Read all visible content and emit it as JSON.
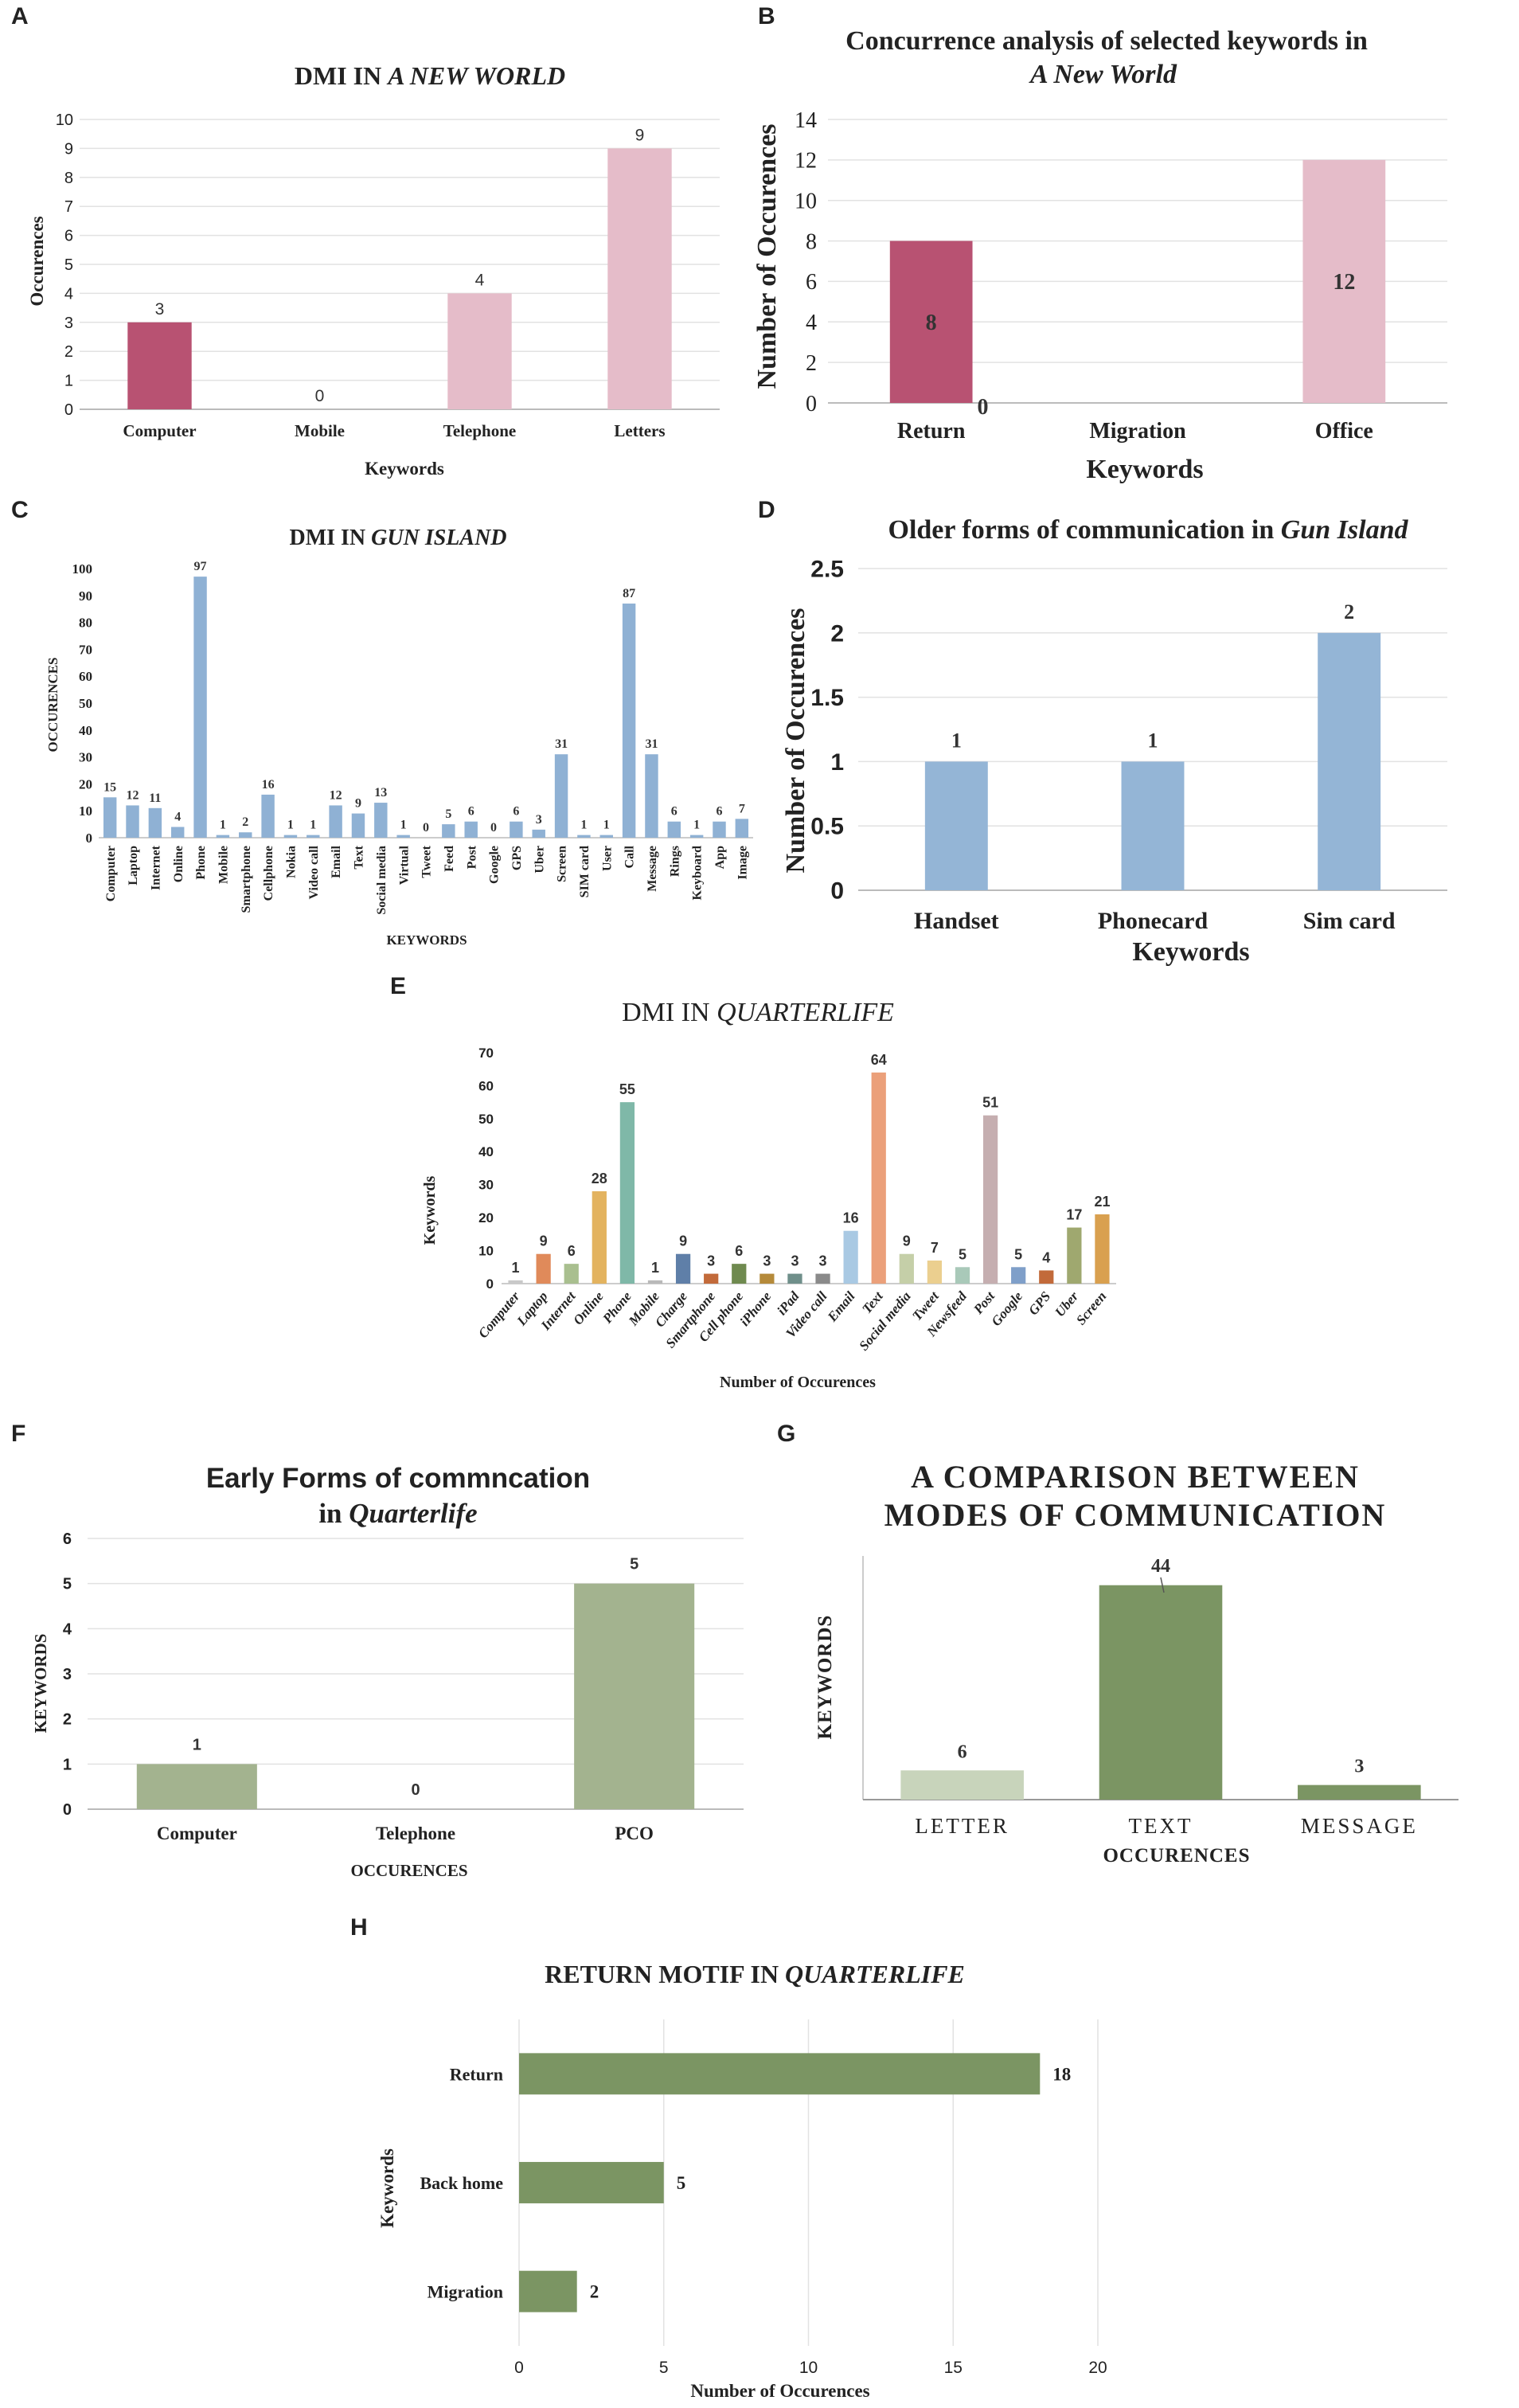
{
  "chart_data": [
    {
      "id": "A",
      "panel_label": "A",
      "type": "bar",
      "title_prefix": "DMI IN ",
      "title_emph": "A NEW WORLD",
      "xlabel": "Keywords",
      "ylabel": "Occurences",
      "categories": [
        "Computer",
        "Mobile",
        "Telephone",
        "Letters"
      ],
      "values": [
        3,
        null,
        4,
        9
      ],
      "data_labels": [
        "3",
        "0",
        "4",
        "9"
      ],
      "ylim": [
        0,
        10
      ],
      "yticks": [
        0,
        1,
        2,
        3,
        4,
        5,
        6,
        7,
        8,
        9,
        10
      ],
      "ytick_labels": [
        "0",
        "1",
        "2",
        "3",
        "4",
        "5",
        "6",
        "7",
        "8",
        "9",
        "10"
      ],
      "colors": [
        "#b85272",
        "#b85272",
        "#e5bcc9",
        "#e5bcc9"
      ]
    },
    {
      "id": "B",
      "panel_label": "B",
      "type": "bar",
      "title_line1": "Concurrence analysis of selected keywords in",
      "title_line2": "A New World",
      "xlabel": "Keywords",
      "ylabel": "Number of Occurences",
      "categories": [
        "Return",
        "Migration",
        "Office"
      ],
      "values": [
        8,
        0,
        12
      ],
      "data_labels": [
        "8",
        "0",
        "12"
      ],
      "ylim": [
        0,
        14
      ],
      "yticks": [
        0,
        2,
        4,
        6,
        8,
        10,
        12,
        14
      ],
      "ytick_labels": [
        "0",
        "2",
        "4",
        "6",
        "8",
        "10",
        "12",
        "14"
      ],
      "colors": [
        "#b85272",
        "#b85272",
        "#e5bcc9"
      ]
    },
    {
      "id": "C",
      "panel_label": "C",
      "type": "bar",
      "title_prefix": "DMI IN ",
      "title_emph": "GUN ISLAND",
      "xlabel": "KEYWORDS",
      "ylabel": "OCCURENCES",
      "categories": [
        "Computer",
        "Laptop",
        "Internet",
        "Online",
        "Phone",
        "Mobile",
        "Smartphone",
        "Cellphone",
        "Nokia",
        "Video call",
        "Email",
        "Text",
        "Social media",
        "Virtual",
        "Tweet",
        "Feed",
        "Post",
        "Google",
        "GPS",
        "Uber",
        "Screen",
        "SIM card",
        "User",
        "Call",
        "Message",
        "Rings",
        "Keyboard",
        "App",
        "Image"
      ],
      "values": [
        15,
        12,
        11,
        4,
        97,
        1,
        2,
        16,
        1,
        1,
        12,
        9,
        13,
        1,
        0,
        5,
        6,
        0,
        6,
        3,
        31,
        1,
        1,
        87,
        31,
        6,
        1,
        6,
        7
      ],
      "data_labels": [
        "15",
        "12",
        "11",
        "4",
        "97",
        "1",
        "2",
        "16",
        "1",
        "1",
        "12",
        "9",
        "13",
        "1",
        "0",
        "5",
        "6",
        "0",
        "6",
        "3",
        "31",
        "1",
        "1",
        "87",
        "31",
        "6",
        "1",
        "6",
        "7"
      ],
      "ylim": [
        0,
        100
      ],
      "yticks": [
        0,
        10,
        20,
        30,
        40,
        50,
        60,
        70,
        80,
        90,
        100
      ],
      "ytick_labels": [
        "0",
        "10",
        "20",
        "30",
        "40",
        "50",
        "60",
        "70",
        "80",
        "90",
        "100"
      ],
      "color": "#8fb1d4"
    },
    {
      "id": "D",
      "panel_label": "D",
      "type": "bar",
      "title_prefix": "Older forms of communication in ",
      "title_emph": "Gun Island",
      "xlabel": "Keywords",
      "ylabel": "Number of Occurences",
      "categories": [
        "Handset",
        "Phonecard",
        "Sim card"
      ],
      "values": [
        1,
        1,
        2
      ],
      "data_labels": [
        "1",
        "1",
        "2"
      ],
      "ylim": [
        0,
        2.5
      ],
      "yticks": [
        0,
        0.5,
        1,
        1.5,
        2,
        2.5
      ],
      "ytick_labels": [
        "0",
        "0.5",
        "1",
        "1.5",
        "2",
        "2.5"
      ],
      "color": "#94b5d6"
    },
    {
      "id": "E",
      "panel_label": "E",
      "type": "bar",
      "title_prefix": "DMI IN ",
      "title_emph": "QUARTERLIFE",
      "xlabel": "Number of Occurences",
      "ylabel": "Keywords",
      "categories": [
        "Computer",
        "Laptop",
        "Internet",
        "Online",
        "Phone",
        "Mobile",
        "Charge",
        "Smartphone",
        "Cell phone",
        "iPhone",
        "iPad",
        "Video call",
        "Email",
        "Text",
        "Social media",
        "Tweet",
        "Newsfeed",
        "Post",
        "Google",
        "GPS",
        "Uber",
        "Screen"
      ],
      "values": [
        1,
        9,
        6,
        28,
        55,
        1,
        9,
        3,
        6,
        3,
        3,
        3,
        16,
        64,
        9,
        7,
        5,
        51,
        5,
        4,
        17,
        21
      ],
      "data_labels": [
        "1",
        "9",
        "6",
        "28",
        "55",
        "1",
        "9",
        "3",
        "6",
        "3",
        "3",
        "3",
        "16",
        "64",
        "9",
        "7",
        "5",
        "51",
        "5",
        "4",
        "17",
        "21"
      ],
      "ylim": [
        0,
        70
      ],
      "yticks": [
        0,
        10,
        20,
        30,
        40,
        50,
        60,
        70
      ],
      "ytick_labels": [
        "0",
        "10",
        "20",
        "30",
        "40",
        "50",
        "60",
        "70"
      ],
      "colors": [
        "#c9c9c9",
        "#e08a5a",
        "#a9bf8f",
        "#e3b35f",
        "#7fb8a8",
        "#b9b9b9",
        "#5f7fa8",
        "#c26a3a",
        "#6f8a4f",
        "#b58a3a",
        "#6f8f8a",
        "#8a8a8a",
        "#a9c9e3",
        "#eba07a",
        "#c5cfa8",
        "#ebcf8f",
        "#a9c9b9",
        "#c5aeb0",
        "#7f9fc9",
        "#c26a3a",
        "#9fa86f",
        "#d9a04f"
      ]
    },
    {
      "id": "F",
      "panel_label": "F",
      "type": "bar",
      "title_line1": "Early Forms of commncation",
      "title_line2_prefix": "in ",
      "title_line2_emph": "Quarterlife",
      "xlabel": "OCCURENCES",
      "ylabel": "KEYWORDS",
      "categories": [
        "Computer",
        "Telephone",
        "PCO"
      ],
      "values": [
        1,
        0,
        5
      ],
      "data_labels": [
        "1",
        "0",
        "5"
      ],
      "ylim": [
        0,
        6
      ],
      "yticks": [
        0,
        1,
        2,
        3,
        4,
        5,
        6
      ],
      "ytick_labels": [
        "0",
        "1",
        "2",
        "3",
        "4",
        "5",
        "6"
      ],
      "color": "#a3b38f"
    },
    {
      "id": "G",
      "panel_label": "G",
      "type": "bar",
      "title_line1": "A COMPARISON BETWEEN",
      "title_line2": "MODES OF COMMUNICATION",
      "xlabel": "OCCURENCES",
      "ylabel": "KEYWORDS",
      "categories": [
        "LETTER",
        "TEXT",
        "MESSAGE"
      ],
      "values": [
        6,
        44,
        3
      ],
      "data_labels": [
        "6",
        "44",
        "3"
      ],
      "ylim": [
        0,
        50
      ],
      "colors": [
        "#c8d4bb",
        "#7b9563",
        "#7b9563"
      ]
    },
    {
      "id": "H",
      "panel_label": "H",
      "type": "bar",
      "orientation": "horizontal",
      "title_prefix": "RETURN MOTIF IN ",
      "title_emph": "QUARTERLIFE",
      "xlabel": "Number of Occurences",
      "ylabel": "Keywords",
      "categories": [
        "Return",
        "Back home",
        "Migration"
      ],
      "values": [
        18,
        5,
        2
      ],
      "data_labels": [
        "18",
        "5",
        "2"
      ],
      "xlim": [
        0,
        20
      ],
      "xticks": [
        0,
        5,
        10,
        15,
        20
      ],
      "xtick_labels": [
        "0",
        "5",
        "10",
        "15",
        "20"
      ],
      "color": "#7b9563"
    }
  ]
}
